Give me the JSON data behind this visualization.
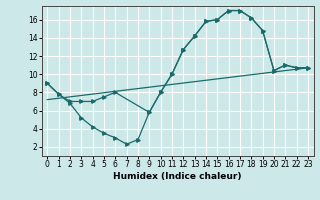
{
  "xlabel": "Humidex (Indice chaleur)",
  "xlim": [
    -0.5,
    23.5
  ],
  "ylim": [
    1,
    17.5
  ],
  "yticks": [
    2,
    4,
    6,
    8,
    10,
    12,
    14,
    16
  ],
  "xticks": [
    0,
    1,
    2,
    3,
    4,
    5,
    6,
    7,
    8,
    9,
    10,
    11,
    12,
    13,
    14,
    15,
    16,
    17,
    18,
    19,
    20,
    21,
    22,
    23
  ],
  "bg_color": "#cde8e8",
  "grid_color": "#ffffff",
  "line_color": "#1a6b6b",
  "line1_x": [
    0,
    1,
    2,
    3,
    4,
    5,
    6,
    9,
    10,
    11,
    12,
    13,
    14,
    15,
    16,
    17,
    18,
    19,
    20,
    21,
    22,
    23
  ],
  "line1_y": [
    9,
    7.8,
    7,
    7,
    7,
    7.5,
    8,
    5.8,
    8,
    10,
    12.7,
    14.2,
    15.8,
    16,
    17,
    17,
    16.2,
    14.8,
    10.4,
    11,
    10.7,
    10.7
  ],
  "line2_x": [
    0,
    1,
    2,
    3,
    4,
    5,
    6,
    7,
    8,
    9,
    10,
    11,
    12,
    13,
    14,
    15,
    16,
    17,
    18,
    19,
    20,
    21,
    22,
    23
  ],
  "line2_y": [
    9,
    7.8,
    6.8,
    5.2,
    4.2,
    3.5,
    3.0,
    2.3,
    2.8,
    5.8,
    8,
    10,
    12.7,
    14.2,
    15.8,
    16,
    17,
    17,
    16.2,
    14.8,
    10.4,
    11,
    10.7,
    10.7
  ],
  "line3_x": [
    0,
    23
  ],
  "line3_y": [
    7.2,
    10.7
  ]
}
